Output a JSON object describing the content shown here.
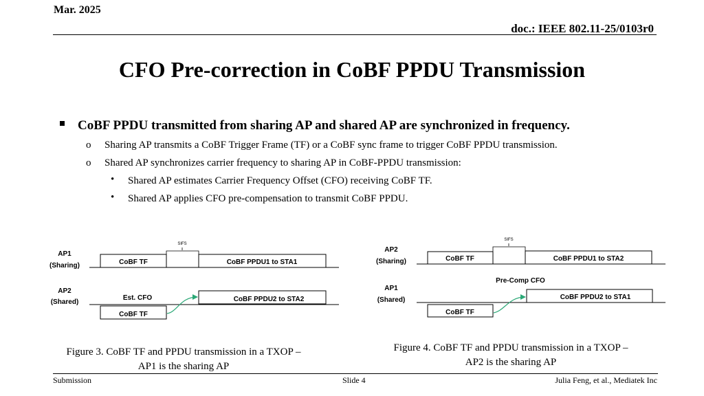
{
  "header": {
    "date": "Mar. 2025",
    "doc": "doc.: IEEE 802.11-25/0103r0"
  },
  "title": "CFO Pre-correction in CoBF PPDU Transmission",
  "bullets": {
    "main": "CoBF PPDU transmitted from sharing AP and shared AP are synchronized in frequency.",
    "sub1": "Sharing AP transmits a CoBF Trigger Frame (TF) or a CoBF sync frame to trigger CoBF PPDU transmission.",
    "sub2": "Shared AP synchronizes carrier frequency to sharing AP in CoBF-PPDU transmission:",
    "sub2_items": [
      "Shared AP estimates Carrier Frequency Offset (CFO) receiving CoBF TF.",
      "Shared AP applies CFO pre-compensation to transmit CoBF PPDU."
    ]
  },
  "figure3": {
    "ap_top": "AP1",
    "ap_top_role": "(Sharing)",
    "ap_bottom": "AP2",
    "ap_bottom_role": "(Shared)",
    "sifs": "SIFS",
    "tf_top": "CoBF TF",
    "ppdu_top": "CoBF PPDU1 to STA1",
    "est_cfo": "Est. CFO",
    "ppdu_bottom": "CoBF PPDU2 to STA2",
    "tf_bottom": "CoBF TF",
    "caption_line1": "Figure 3. CoBF TF and PPDU transmission in a TXOP –",
    "caption_line2": "AP1 is the sharing AP"
  },
  "figure4": {
    "ap_top": "AP2",
    "ap_top_role": "(Sharing)",
    "ap_bottom": "AP1",
    "ap_bottom_role": "(Shared)",
    "sifs": "SIFS",
    "tf_top": "CoBF TF",
    "ppdu_top": "CoBF PPDU1 to STA2",
    "precomp": "Pre-Comp CFO",
    "ppdu_bottom": "CoBF PPDU2 to STA1",
    "tf_bottom": "CoBF TF",
    "caption_line1": "Figure 4. CoBF TF and PPDU transmission in a TXOP –",
    "caption_line2": "AP2 is the sharing AP"
  },
  "footer": {
    "left": "Submission",
    "center": "Slide 4",
    "right": "Julia Feng, et al., Mediatek Inc"
  },
  "colors": {
    "arrow": "#2aa876"
  }
}
